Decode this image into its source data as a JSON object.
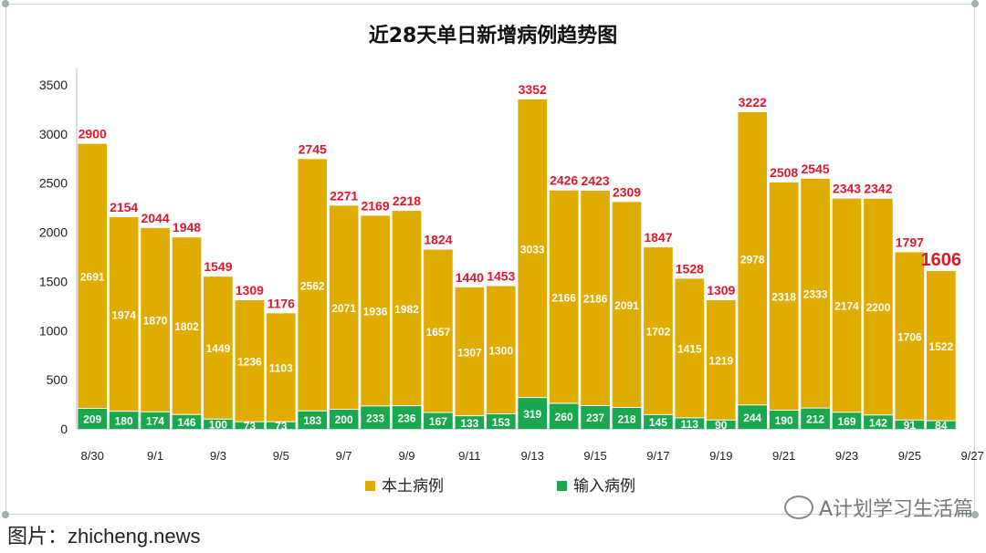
{
  "chart_data": {
    "type": "bar",
    "stacked": true,
    "title": "近28天单日新增病例趋势图",
    "categories": [
      "8/30",
      "8/31",
      "9/1",
      "9/2",
      "9/3",
      "9/4",
      "9/5",
      "9/6",
      "9/7",
      "9/8",
      "9/9",
      "9/10",
      "9/11",
      "9/12",
      "9/13",
      "9/14",
      "9/15",
      "9/16",
      "9/17",
      "9/18",
      "9/19",
      "9/20",
      "9/21",
      "9/22",
      "9/23",
      "9/24",
      "9/25",
      "9/26"
    ],
    "x_tick_labels": [
      "8/30",
      "9/1",
      "9/3",
      "9/5",
      "9/7",
      "9/9",
      "9/11",
      "9/13",
      "9/15",
      "9/17",
      "9/19",
      "9/21",
      "9/23",
      "9/25",
      "9/27"
    ],
    "series": [
      {
        "name": "输入病例",
        "color": "#1aa84f",
        "values": [
          209,
          180,
          174,
          146,
          100,
          73,
          73,
          183,
          200,
          233,
          236,
          167,
          133,
          153,
          319,
          260,
          237,
          218,
          145,
          113,
          90,
          244,
          190,
          212,
          169,
          142,
          91,
          84
        ]
      },
      {
        "name": "本土病例",
        "color": "#e0ac00",
        "values": [
          2691,
          1974,
          1870,
          1802,
          1449,
          1236,
          1103,
          2562,
          2071,
          1936,
          1982,
          1657,
          1307,
          1300,
          3033,
          2166,
          2186,
          2091,
          1702,
          1415,
          1219,
          2978,
          2318,
          2333,
          2174,
          2200,
          1706,
          1522
        ]
      }
    ],
    "totals": [
      2900,
      2154,
      2044,
      1948,
      1549,
      1309,
      1176,
      2745,
      2271,
      2169,
      2218,
      1824,
      1440,
      1453,
      3352,
      2426,
      2423,
      2309,
      1847,
      1528,
      1309,
      3222,
      2508,
      2545,
      2343,
      2342,
      1797,
      1606
    ],
    "total_label_color": "#e2162a",
    "ylim": [
      0,
      3500
    ],
    "yticks": [
      0,
      500,
      1000,
      1500,
      2000,
      2500,
      3000,
      3500
    ],
    "legend_position": "bottom",
    "grid": false
  },
  "footer": {
    "text": "图片：zhicheng.news"
  },
  "watermark": {
    "text": "A计划学习生活篇"
  }
}
